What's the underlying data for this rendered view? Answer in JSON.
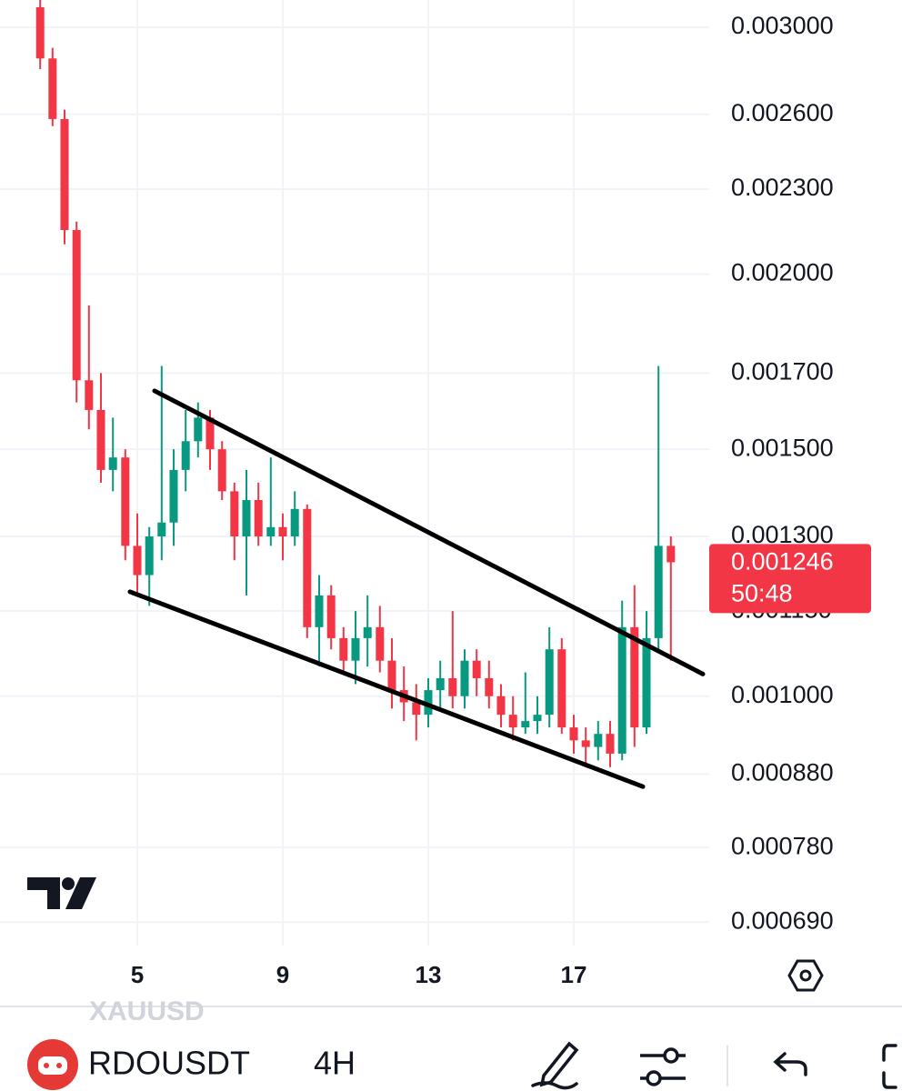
{
  "chart_data": {
    "type": "candlestick",
    "log_scale": true,
    "grid": true,
    "up_color": "#089981",
    "down_color": "#f23645",
    "x": [
      2.33,
      2.67,
      3,
      3.33,
      3.67,
      4,
      4.33,
      4.67,
      5,
      5.33,
      5.67,
      6,
      6.33,
      6.67,
      7,
      7.33,
      7.67,
      8,
      8.33,
      8.67,
      9,
      9.33,
      9.67,
      10,
      10.33,
      10.67,
      11,
      11.33,
      11.67,
      12,
      12.33,
      12.67,
      13,
      13.33,
      13.67,
      14,
      14.33,
      14.67,
      15,
      15.33,
      15.67,
      16,
      16.33,
      16.67,
      17,
      17.33,
      17.67,
      18,
      18.33,
      18.67,
      19,
      19.33,
      19.67
    ],
    "open": [
      0.0031,
      0.00285,
      0.00258,
      0.00215,
      0.00168,
      0.0016,
      0.00145,
      0.00148,
      0.00128,
      0.00122,
      0.0013,
      0.00133,
      0.00145,
      0.00152,
      0.00158,
      0.0015,
      0.0014,
      0.0013,
      0.00138,
      0.0013,
      0.00132,
      0.0013,
      0.00136,
      0.00112,
      0.00118,
      0.0011,
      0.00106,
      0.0011,
      0.00112,
      0.00106,
      0.00101,
      0.00099,
      0.00097,
      0.00101,
      0.00103,
      0.001,
      0.00106,
      0.00103,
      0.001,
      0.00097,
      0.00095,
      0.00096,
      0.00097,
      0.00108,
      0.00095,
      0.00093,
      0.00092,
      0.00094,
      0.00091,
      0.00112,
      0.00095,
      0.0011,
      0.00128
    ],
    "high": [
      0.00315,
      0.0029,
      0.00262,
      0.00218,
      0.0019,
      0.0017,
      0.00158,
      0.0015,
      0.00135,
      0.00132,
      0.00172,
      0.0015,
      0.0016,
      0.00162,
      0.0016,
      0.00152,
      0.00142,
      0.00145,
      0.00142,
      0.00148,
      0.00135,
      0.0014,
      0.00137,
      0.00122,
      0.0012,
      0.00112,
      0.00115,
      0.00118,
      0.00116,
      0.0011,
      0.00105,
      0.00102,
      0.00103,
      0.00106,
      0.00115,
      0.00108,
      0.00108,
      0.00106,
      0.00102,
      0.001,
      0.00104,
      0.001,
      0.00112,
      0.0011,
      0.00097,
      0.00095,
      0.00096,
      0.00096,
      0.00117,
      0.0012,
      0.00115,
      0.00172,
      0.0013
    ],
    "low": [
      0.0028,
      0.00255,
      0.0021,
      0.00162,
      0.00155,
      0.00142,
      0.0014,
      0.00125,
      0.00118,
      0.00116,
      0.00125,
      0.00128,
      0.0014,
      0.00148,
      0.00145,
      0.00138,
      0.00125,
      0.00118,
      0.00128,
      0.00128,
      0.00125,
      0.00128,
      0.0011,
      0.00105,
      0.00108,
      0.00104,
      0.00102,
      0.00105,
      0.00104,
      0.00098,
      0.00096,
      0.00093,
      0.00095,
      0.00098,
      0.00098,
      0.00098,
      0.001,
      0.00098,
      0.00095,
      0.00093,
      0.00094,
      0.00094,
      0.00095,
      0.00094,
      0.00091,
      0.00089,
      0.0009,
      0.00089,
      0.0009,
      0.00092,
      0.00094,
      0.00108,
      0.00106
    ],
    "close": [
      0.00285,
      0.00258,
      0.00215,
      0.00168,
      0.0016,
      0.00145,
      0.00148,
      0.00128,
      0.00122,
      0.0013,
      0.00133,
      0.00145,
      0.00152,
      0.00158,
      0.0015,
      0.0014,
      0.0013,
      0.00138,
      0.0013,
      0.00132,
      0.0013,
      0.00136,
      0.00112,
      0.00118,
      0.0011,
      0.00106,
      0.0011,
      0.00112,
      0.00106,
      0.00101,
      0.00099,
      0.00097,
      0.00101,
      0.00103,
      0.001,
      0.00106,
      0.00103,
      0.001,
      0.00097,
      0.00095,
      0.00096,
      0.00097,
      0.00108,
      0.00095,
      0.00093,
      0.00092,
      0.00094,
      0.00091,
      0.00112,
      0.00095,
      0.0011,
      0.00128,
      0.001246
    ],
    "xlim": [
      1.225,
      20.725
    ],
    "xticks": [
      5,
      9,
      13,
      17
    ],
    "ylim": [
      0.000664,
      0.003137
    ],
    "yticks": [
      {
        "value": 0.003,
        "label": "0.003000"
      },
      {
        "value": 0.0026,
        "label": "0.002600"
      },
      {
        "value": 0.0023,
        "label": "0.002300"
      },
      {
        "value": 0.002,
        "label": "0.002000"
      },
      {
        "value": 0.0017,
        "label": "0.001700"
      },
      {
        "value": 0.0015,
        "label": "0.001500"
      },
      {
        "value": 0.0013,
        "label": "0.001300"
      },
      {
        "value": 0.00115,
        "label": "0.001150"
      },
      {
        "value": 0.001,
        "label": "0.001000"
      },
      {
        "value": 0.00088,
        "label": "0.000880"
      },
      {
        "value": 0.00078,
        "label": "0.000780"
      },
      {
        "value": 0.00069,
        "label": "0.000690"
      }
    ],
    "last_price": 0.001246,
    "countdown": "50:48",
    "trendlines": [
      {
        "x": [
          5.475,
          20.55
        ],
        "y": [
          0.001651,
          0.001037
        ]
      },
      {
        "x": [
          4.8,
          18.9
        ],
        "y": [
          0.001187,
          0.000862
        ]
      }
    ]
  },
  "toolbar": {
    "watermark": "XAUUSD",
    "symbol": "RDOUSDT",
    "interval": "4H"
  }
}
